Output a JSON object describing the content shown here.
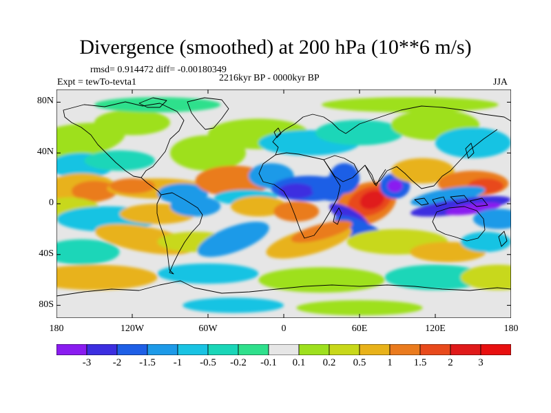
{
  "title": "Divergence (smoothed) at 200 hPa (10**6 m/s)",
  "stats": "rmsd= 0.914472 diff= -0.00180349",
  "period": "2216kyr BP - 0000kyr BP",
  "experiment": "Expt = tewTo-tevta1",
  "season": "JJA",
  "lat_ticks": [
    "80N",
    "40N",
    "0",
    "40S",
    "80S"
  ],
  "lat_values": [
    80,
    40,
    0,
    -40,
    -80
  ],
  "lon_ticks": [
    "180",
    "120W",
    "60W",
    "0",
    "60E",
    "120E",
    "180"
  ],
  "lon_values": [
    -180,
    -120,
    -60,
    0,
    60,
    120,
    180
  ],
  "colorbar": {
    "labels": [
      "-3",
      "-2",
      "-1.5",
      "-1",
      "-0.5",
      "-0.2",
      "-0.1",
      "0.1",
      "0.2",
      "0.5",
      "1",
      "1.5",
      "2",
      "3"
    ],
    "colors": [
      "#8a1cf0",
      "#3c2ee0",
      "#1e5fe6",
      "#1d9ae8",
      "#19c3e3",
      "#1ad6b8",
      "#2fe08c",
      "#e6e6e6",
      "#9ee01e",
      "#c8d81a",
      "#e8b21a",
      "#ea7b1e",
      "#e84a1c",
      "#e01a1a",
      "#e81010"
    ]
  },
  "field_colors": {
    "neutral": "#e6e6e6",
    "pos1": "#9ee01e",
    "pos2": "#c8d81a",
    "pos3": "#e8b21a",
    "pos4": "#ea7b1e",
    "pos5": "#e84a1c",
    "pos6": "#e01a1a",
    "neg1": "#2fe08c",
    "neg2": "#1ad6b8",
    "neg3": "#19c3e3",
    "neg4": "#1d9ae8",
    "neg5": "#1e5fe6",
    "neg6": "#3c2ee0",
    "neg7": "#8a1cf0"
  }
}
